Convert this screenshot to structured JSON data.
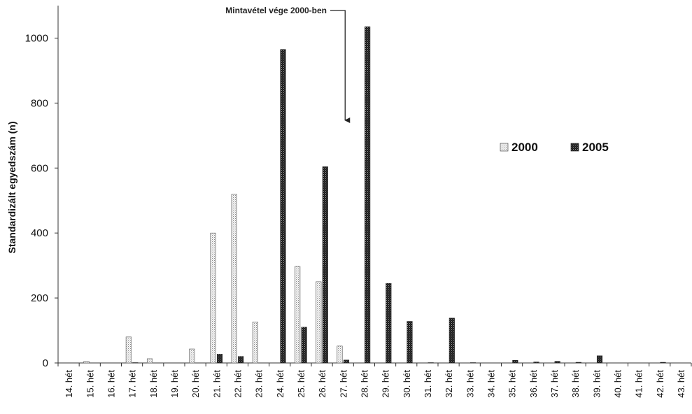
{
  "chart_data": {
    "type": "bar",
    "ylabel": "Standardizált egyedszám (n)",
    "xlabel": "",
    "ylim": [
      0,
      1100
    ],
    "yticks": [
      0,
      200,
      400,
      600,
      800,
      1000
    ],
    "grid": false,
    "legend_position": "right-middle",
    "categories": [
      "14. hét",
      "15. hét",
      "16. hét",
      "17. hét",
      "18. hét",
      "19. hét",
      "20. hét",
      "21. hét",
      "22. hét",
      "23. hét",
      "24. hét",
      "25. hét",
      "26. hét",
      "27. hét",
      "28. hét",
      "29. hét",
      "30. hét",
      "31. hét",
      "32. hét",
      "33. hét",
      "34. hét",
      "35. hét",
      "36. hét",
      "37. hét",
      "38. hét",
      "39. hét",
      "40. hét",
      "41. hét",
      "42. hét",
      "43. hét"
    ],
    "series": [
      {
        "name": "2000",
        "color": "#e8e8e8",
        "pattern": "light-dots",
        "values": [
          0,
          5,
          0,
          80,
          13,
          0,
          43,
          400,
          519,
          126,
          0,
          297,
          250,
          52,
          0,
          0,
          0,
          0,
          0,
          0,
          0,
          0,
          0,
          0,
          0,
          0,
          0,
          0,
          0,
          0
        ]
      },
      {
        "name": "2005",
        "color": "#222222",
        "pattern": "dark-dots",
        "values": [
          0,
          0,
          0,
          1,
          0,
          0,
          0,
          27,
          20,
          0,
          965,
          110,
          604,
          9,
          1035,
          245,
          128,
          1,
          138,
          1,
          0,
          8,
          3,
          5,
          2,
          22,
          0,
          0,
          2,
          0
        ]
      }
    ],
    "annotation": {
      "text": "Mintavétel vége 2000-ben",
      "category": "27. hét"
    }
  }
}
